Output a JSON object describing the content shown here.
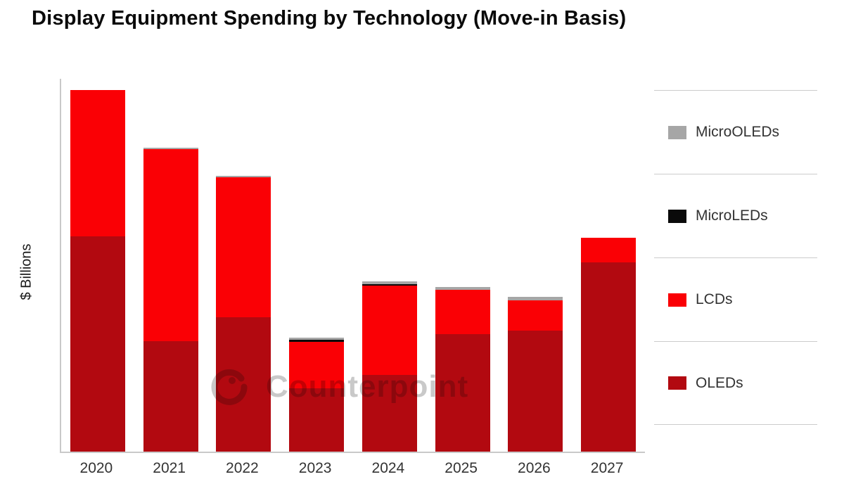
{
  "title": "Display Equipment Spending by Technology (Move-in Basis)",
  "ylabel": "$ Billions",
  "watermark": {
    "text": "Counterpoint",
    "logo": "counterpoint-swirl-logo"
  },
  "legend": {
    "position": "right",
    "items": [
      {
        "label": "MicroOLEDs",
        "color": "#a6a6a6"
      },
      {
        "label": "MicroLEDs",
        "color": "#0a0a0a"
      },
      {
        "label": "LCDs",
        "color": "#fa0005"
      },
      {
        "label": "OLEDs",
        "color": "#b20910"
      }
    ]
  },
  "chart_data": {
    "type": "bar",
    "stacked": true,
    "title": "Display Equipment Spending by Technology (Move-in Basis)",
    "xlabel": "",
    "ylabel": "$ Billions",
    "categories": [
      "2020",
      "2021",
      "2022",
      "2023",
      "2024",
      "2025",
      "2026",
      "2027"
    ],
    "value_units": "relative index estimated from bar heights (2020 total = 100); y-axis shows no numeric ticks",
    "ylim": [
      0,
      103
    ],
    "grid": false,
    "legend_position": "right",
    "series": [
      {
        "name": "OLEDs",
        "color": "#b20910",
        "values": [
          59.5,
          30.5,
          37.2,
          17.5,
          21.2,
          32.5,
          33.5,
          52.3
        ]
      },
      {
        "name": "LCDs",
        "color": "#fa0005",
        "values": [
          40.5,
          53.1,
          38.7,
          12.8,
          24.7,
          12.3,
          8.4,
          6.8
        ]
      },
      {
        "name": "MicroLEDs",
        "color": "#0a0a0a",
        "values": [
          0,
          0,
          0,
          0.6,
          0.4,
          0,
          0,
          0
        ]
      },
      {
        "name": "MicroOLEDs",
        "color": "#a6a6a6",
        "values": [
          0,
          0.4,
          0.4,
          0.6,
          0.8,
          0.8,
          1.0,
          0
        ]
      }
    ],
    "stack_totals": [
      100,
      84.0,
      76.3,
      31.5,
      47.1,
      45.6,
      42.9,
      59.1
    ]
  }
}
